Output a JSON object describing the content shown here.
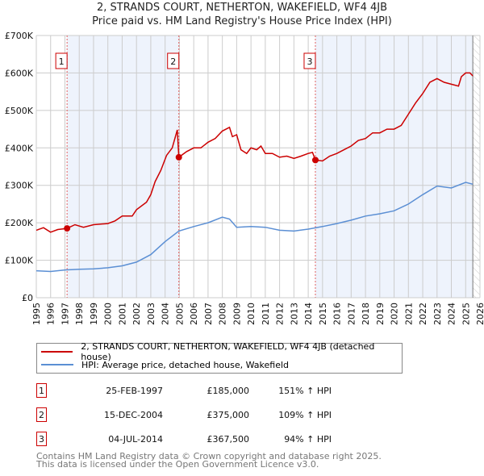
{
  "chart_data": {
    "type": "line",
    "title": "2, STRANDS COURT, NETHERTON, WAKEFIELD, WF4 4JB",
    "subtitle": "Price paid vs. HM Land Registry's House Price Index (HPI)",
    "xlabel": "",
    "ylabel": "",
    "xlim": [
      1995,
      2026
    ],
    "ylim": [
      0,
      700000
    ],
    "yticks": [
      0,
      100000,
      200000,
      300000,
      400000,
      500000,
      600000,
      700000
    ],
    "ytick_labels": [
      "£0",
      "£100K",
      "£200K",
      "£300K",
      "£400K",
      "£500K",
      "£600K",
      "£700K"
    ],
    "xticks": [
      1995,
      1996,
      1997,
      1998,
      1999,
      2000,
      2001,
      2002,
      2003,
      2004,
      2005,
      2006,
      2007,
      2008,
      2009,
      2010,
      2011,
      2012,
      2013,
      2014,
      2015,
      2016,
      2017,
      2018,
      2019,
      2020,
      2021,
      2022,
      2023,
      2024,
      2025,
      2026
    ],
    "grid": true,
    "legend_placement": "below",
    "colors": {
      "property": "#cc0000",
      "hpi": "#5b8fd4",
      "shade": "#eef3fc",
      "marker_line": "#e06060"
    },
    "series": [
      {
        "name": "2, STRANDS COURT, NETHERTON, WAKEFIELD, WF4 4JB (detached house)",
        "x": [
          1995,
          1995.5,
          1996,
          1996.5,
          1997.15,
          1997.7,
          1998.3,
          1999,
          2000,
          2000.5,
          2001,
          2001.7,
          2002,
          2002.7,
          2003,
          2003.3,
          2003.7,
          2004.1,
          2004.5,
          2004.85,
          2004.96,
          2005.5,
          2006,
          2006.5,
          2007,
          2007.5,
          2008,
          2008.5,
          2008.7,
          2009,
          2009.3,
          2009.7,
          2010,
          2010.4,
          2010.7,
          2011,
          2011.5,
          2012,
          2012.5,
          2013,
          2013.5,
          2014,
          2014.3,
          2014.5,
          2015,
          2015.5,
          2016,
          2016.5,
          2017,
          2017.5,
          2018,
          2018.5,
          2019,
          2019.5,
          2020,
          2020.5,
          2021,
          2021.5,
          2022,
          2022.5,
          2023,
          2023.5,
          2024,
          2024.5,
          2024.7,
          2025,
          2025.3,
          2025.5
        ],
        "y": [
          180000,
          187000,
          175000,
          182000,
          185000,
          195000,
          188000,
          195000,
          198000,
          205000,
          218000,
          218000,
          235000,
          255000,
          275000,
          310000,
          340000,
          380000,
          400000,
          448000,
          375000,
          390000,
          400000,
          400000,
          415000,
          425000,
          445000,
          455000,
          430000,
          435000,
          395000,
          385000,
          400000,
          395000,
          405000,
          385000,
          385000,
          375000,
          378000,
          372000,
          378000,
          385000,
          388000,
          367500,
          365000,
          378000,
          385000,
          395000,
          405000,
          420000,
          425000,
          440000,
          440000,
          450000,
          450000,
          460000,
          490000,
          520000,
          545000,
          575000,
          585000,
          575000,
          570000,
          565000,
          590000,
          600000,
          600000,
          592000
        ]
      },
      {
        "name": "HPI: Average price, detached house, Wakefield",
        "x": [
          1995,
          1996,
          1997,
          1998,
          1999,
          2000,
          2001,
          2002,
          2003,
          2004,
          2004.96,
          2006,
          2007,
          2008,
          2008.5,
          2009,
          2010,
          2011,
          2012,
          2013,
          2014,
          2015,
          2016,
          2017,
          2018,
          2019,
          2020,
          2021,
          2022,
          2023,
          2024,
          2025,
          2025.5
        ],
        "y": [
          72000,
          70000,
          74000,
          76000,
          77000,
          80000,
          85000,
          95000,
          115000,
          150000,
          178000,
          190000,
          200000,
          215000,
          210000,
          188000,
          190000,
          188000,
          180000,
          178000,
          183000,
          190000,
          198000,
          207000,
          218000,
          224000,
          232000,
          250000,
          275000,
          298000,
          293000,
          308000,
          303000
        ]
      }
    ],
    "sales": [
      {
        "label": "1",
        "x": 1997.15,
        "y": 185000,
        "date": "25-FEB-1997",
        "price": "£185,000",
        "hpi": "151% ↑ HPI"
      },
      {
        "label": "2",
        "x": 2004.96,
        "y": 375000,
        "date": "15-DEC-2004",
        "price": "£375,000",
        "hpi": "109% ↑ HPI"
      },
      {
        "label": "3",
        "x": 2014.5,
        "y": 367500,
        "date": "04-JUL-2014",
        "price": "£367,500",
        "hpi": "94% ↑ HPI"
      }
    ],
    "data_end": 2025.5
  },
  "footer": {
    "line1": "Contains HM Land Registry data © Crown copyright and database right 2025.",
    "line2": "This data is licensed under the Open Government Licence v3.0."
  }
}
